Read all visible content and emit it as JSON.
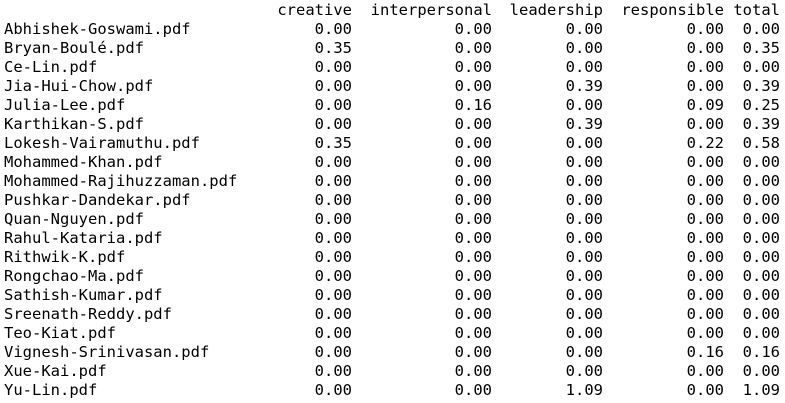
{
  "table": {
    "columns": [
      "creative",
      "interpersonal",
      "leadership",
      "responsible",
      "total"
    ],
    "rows": [
      {
        "name": "Abhishek-Goswami.pdf",
        "values": [
          "0.00",
          "0.00",
          "0.00",
          "0.00",
          "0.00"
        ]
      },
      {
        "name": "Bryan-Boulé.pdf",
        "values": [
          "0.35",
          "0.00",
          "0.00",
          "0.00",
          "0.35"
        ]
      },
      {
        "name": "Ce-Lin.pdf",
        "values": [
          "0.00",
          "0.00",
          "0.00",
          "0.00",
          "0.00"
        ]
      },
      {
        "name": "Jia-Hui-Chow.pdf",
        "values": [
          "0.00",
          "0.00",
          "0.39",
          "0.00",
          "0.39"
        ]
      },
      {
        "name": "Julia-Lee.pdf",
        "values": [
          "0.00",
          "0.16",
          "0.00",
          "0.09",
          "0.25"
        ]
      },
      {
        "name": "Karthikan-S.pdf",
        "values": [
          "0.00",
          "0.00",
          "0.39",
          "0.00",
          "0.39"
        ]
      },
      {
        "name": "Lokesh-Vairamuthu.pdf",
        "values": [
          "0.35",
          "0.00",
          "0.00",
          "0.22",
          "0.58"
        ]
      },
      {
        "name": "Mohammed-Khan.pdf",
        "values": [
          "0.00",
          "0.00",
          "0.00",
          "0.00",
          "0.00"
        ]
      },
      {
        "name": "Mohammed-Rajihuzzaman.pdf",
        "values": [
          "0.00",
          "0.00",
          "0.00",
          "0.00",
          "0.00"
        ]
      },
      {
        "name": "Pushkar-Dandekar.pdf",
        "values": [
          "0.00",
          "0.00",
          "0.00",
          "0.00",
          "0.00"
        ]
      },
      {
        "name": "Quan-Nguyen.pdf",
        "values": [
          "0.00",
          "0.00",
          "0.00",
          "0.00",
          "0.00"
        ]
      },
      {
        "name": "Rahul-Kataria.pdf",
        "values": [
          "0.00",
          "0.00",
          "0.00",
          "0.00",
          "0.00"
        ]
      },
      {
        "name": "Rithwik-K.pdf",
        "values": [
          "0.00",
          "0.00",
          "0.00",
          "0.00",
          "0.00"
        ]
      },
      {
        "name": "Rongchao-Ma.pdf",
        "values": [
          "0.00",
          "0.00",
          "0.00",
          "0.00",
          "0.00"
        ]
      },
      {
        "name": "Sathish-Kumar.pdf",
        "values": [
          "0.00",
          "0.00",
          "0.00",
          "0.00",
          "0.00"
        ]
      },
      {
        "name": "Sreenath-Reddy.pdf",
        "values": [
          "0.00",
          "0.00",
          "0.00",
          "0.00",
          "0.00"
        ]
      },
      {
        "name": "Teo-Kiat.pdf",
        "values": [
          "0.00",
          "0.00",
          "0.00",
          "0.00",
          "0.00"
        ]
      },
      {
        "name": "Vignesh-Srinivasan.pdf",
        "values": [
          "0.00",
          "0.00",
          "0.00",
          "0.16",
          "0.16"
        ]
      },
      {
        "name": "Xue-Kai.pdf",
        "values": [
          "0.00",
          "0.00",
          "0.00",
          "0.00",
          "0.00"
        ]
      },
      {
        "name": "Yu-Lin.pdf",
        "values": [
          "0.00",
          "0.00",
          "1.09",
          "0.00",
          "1.09"
        ]
      }
    ]
  }
}
